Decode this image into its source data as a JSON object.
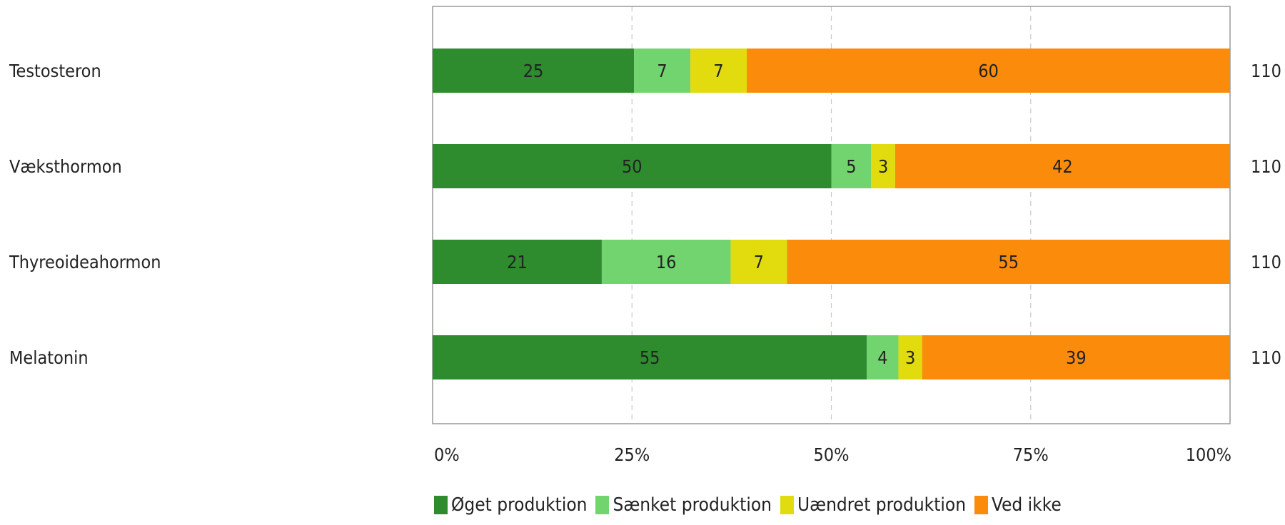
{
  "chart_data": {
    "type": "bar",
    "orientation": "horizontal",
    "stacked": true,
    "normalized": true,
    "categories": [
      "Testosteron",
      "Væksthormon",
      "Thyreoideahormon",
      "Melatonin"
    ],
    "series": [
      {
        "name": "Øget produktion",
        "color": "#2e8b2e",
        "values": [
          25,
          50,
          21,
          55
        ]
      },
      {
        "name": "Sænket produktion",
        "color": "#72d46f",
        "values": [
          7,
          5,
          16,
          4
        ]
      },
      {
        "name": "Uændret produktion",
        "color": "#e2dc0e",
        "values": [
          7,
          3,
          7,
          3
        ]
      },
      {
        "name": "Ved ikke",
        "color": "#fb8b0a",
        "values": [
          60,
          42,
          55,
          39
        ]
      }
    ],
    "totals": [
      "110",
      "110",
      "110",
      "110"
    ],
    "xticks": [
      "0%",
      "25%",
      "50%",
      "75%",
      "100%"
    ],
    "xlim": [
      0,
      100
    ],
    "grid": "vertical dashed",
    "legend": "bottom"
  }
}
